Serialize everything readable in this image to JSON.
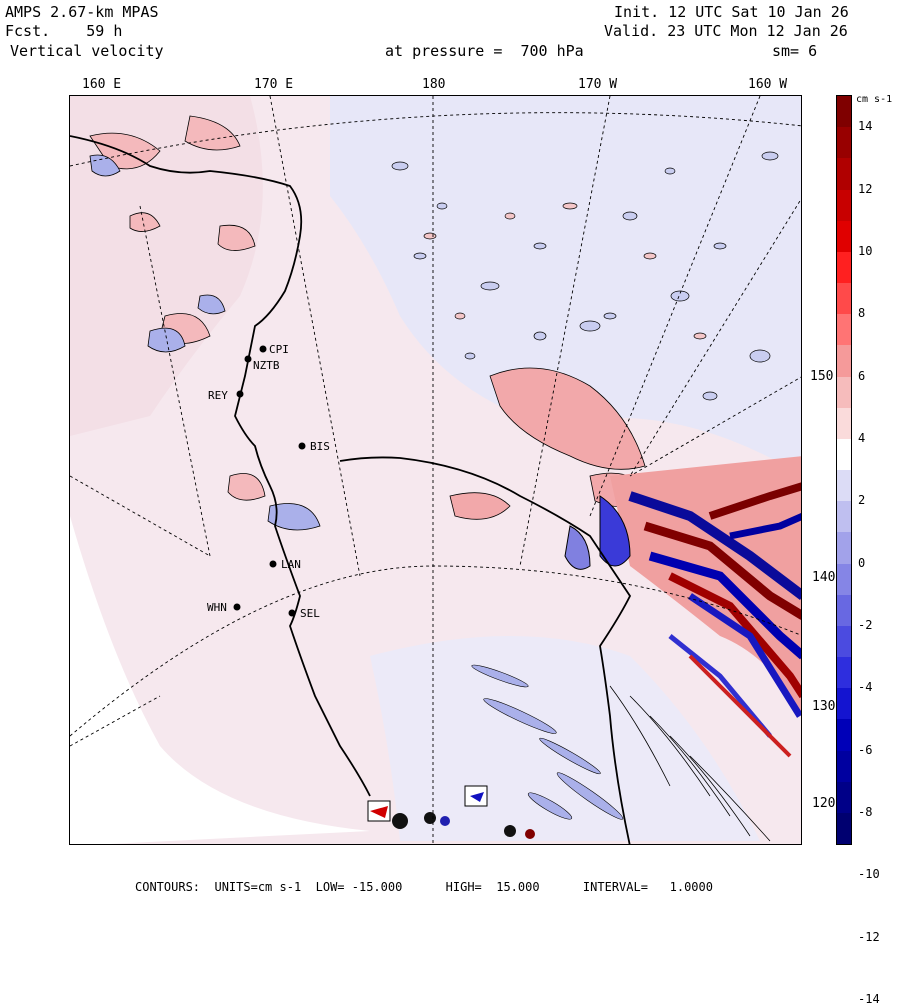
{
  "header": {
    "model": "AMPS 2.67-km MPAS",
    "fcst_label": "Fcst.",
    "fcst_value": "59 h",
    "field": "Vertical velocity",
    "init": "Init. 12 UTC Sat 10 Jan 26",
    "valid": "Valid. 23 UTC Mon 12 Jan 26",
    "pressure": "at pressure =  700 hPa",
    "smooth": "sm= 6"
  },
  "axes": {
    "longitudes": [
      "160 E",
      "170 E",
      "180",
      "170 W",
      "160 W"
    ],
    "latitudes": [
      "150 W",
      "140 W",
      "130 W",
      "120 W"
    ]
  },
  "stations": [
    "CPI",
    "NZTB",
    "REY",
    "BIS",
    "LAN",
    "WHN",
    "SEL"
  ],
  "legend": {
    "units_label": "cm s-1",
    "ticks": [
      "14",
      "12",
      "10",
      "8",
      "6",
      "4",
      "2",
      "0",
      "-2",
      "-4",
      "-6",
      "-8",
      "-10",
      "-12",
      "-14"
    ],
    "colors": [
      "#7f0000",
      "#980000",
      "#b00000",
      "#c80000",
      "#e00000",
      "#ff2020",
      "#ff4a4a",
      "#ff7474",
      "#f59a9a",
      "#f6bcbc",
      "#fadbdb",
      "#ffffff",
      "#dcdcf6",
      "#bfbff0",
      "#a2a2ea",
      "#8585e6",
      "#6868e2",
      "#4b4be0",
      "#2e2ede",
      "#1414d0",
      "#0000b8",
      "#0000a0",
      "#000088",
      "#000070"
    ]
  },
  "footer": {
    "text": "CONTOURS:  UNITS=cm s-1  LOW= -15.000      HIGH=  15.000      INTERVAL=   1.0000"
  }
}
